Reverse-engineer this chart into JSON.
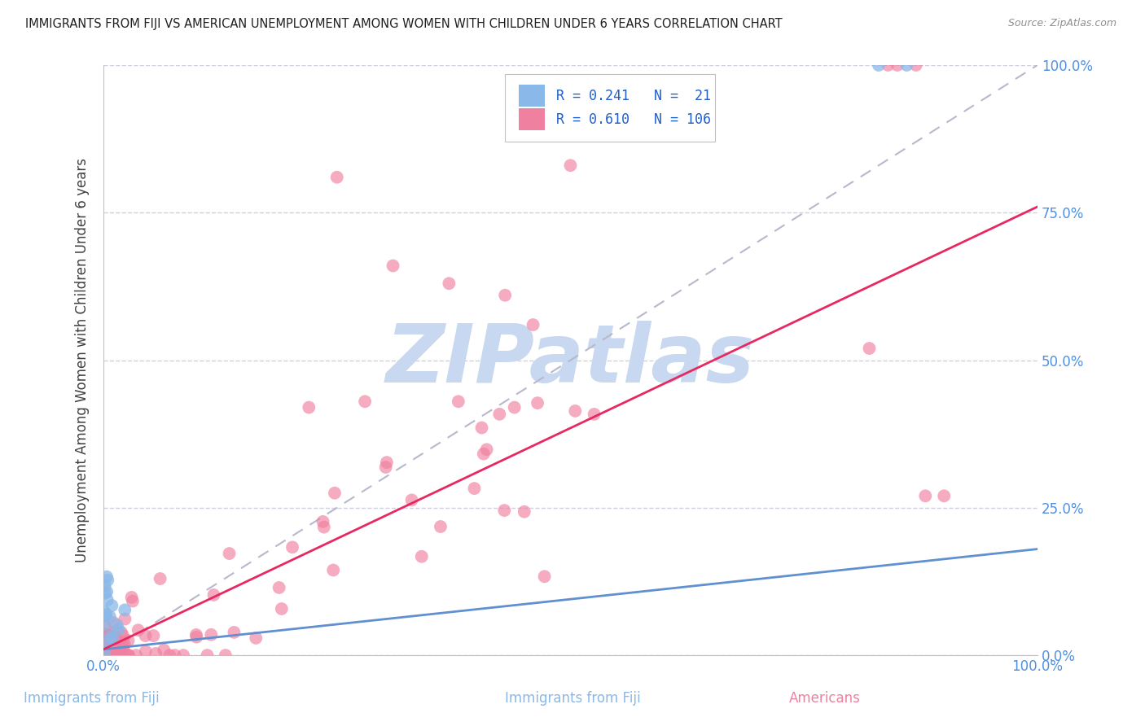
{
  "title": "IMMIGRANTS FROM FIJI VS AMERICAN UNEMPLOYMENT AMONG WOMEN WITH CHILDREN UNDER 6 YEARS CORRELATION CHART",
  "source": "Source: ZipAtlas.com",
  "ylabel": "Unemployment Among Women with Children Under 6 years",
  "xlim": [
    0,
    1
  ],
  "ylim": [
    0,
    1
  ],
  "ytick_values": [
    0,
    0.25,
    0.5,
    0.75,
    1.0
  ],
  "xtick_values": [
    0,
    0.1,
    0.2,
    0.3,
    0.4,
    0.5,
    0.6,
    0.7,
    0.8,
    0.9,
    1.0
  ],
  "legend_blue_label": "Immigrants from Fiji",
  "legend_pink_label": "Americans",
  "R_blue": 0.241,
  "N_blue": 21,
  "R_pink": 0.61,
  "N_pink": 106,
  "blue_scatter_color": "#8ab8e8",
  "pink_scatter_color": "#f080a0",
  "trendline_blue_color": "#6090d0",
  "trendline_pink_color": "#e82860",
  "diagonal_color": "#b8b8cc",
  "watermark": "ZIPatlas",
  "watermark_color": "#c8d8f0",
  "tick_color": "#5090e0",
  "background_color": "#ffffff",
  "blue_trend_x0": 0.0,
  "blue_trend_y0": 0.01,
  "blue_trend_x1": 1.0,
  "blue_trend_y1": 0.18,
  "pink_trend_x0": 0.0,
  "pink_trend_y0": 0.01,
  "pink_trend_x1": 1.0,
  "pink_trend_y1": 0.76
}
